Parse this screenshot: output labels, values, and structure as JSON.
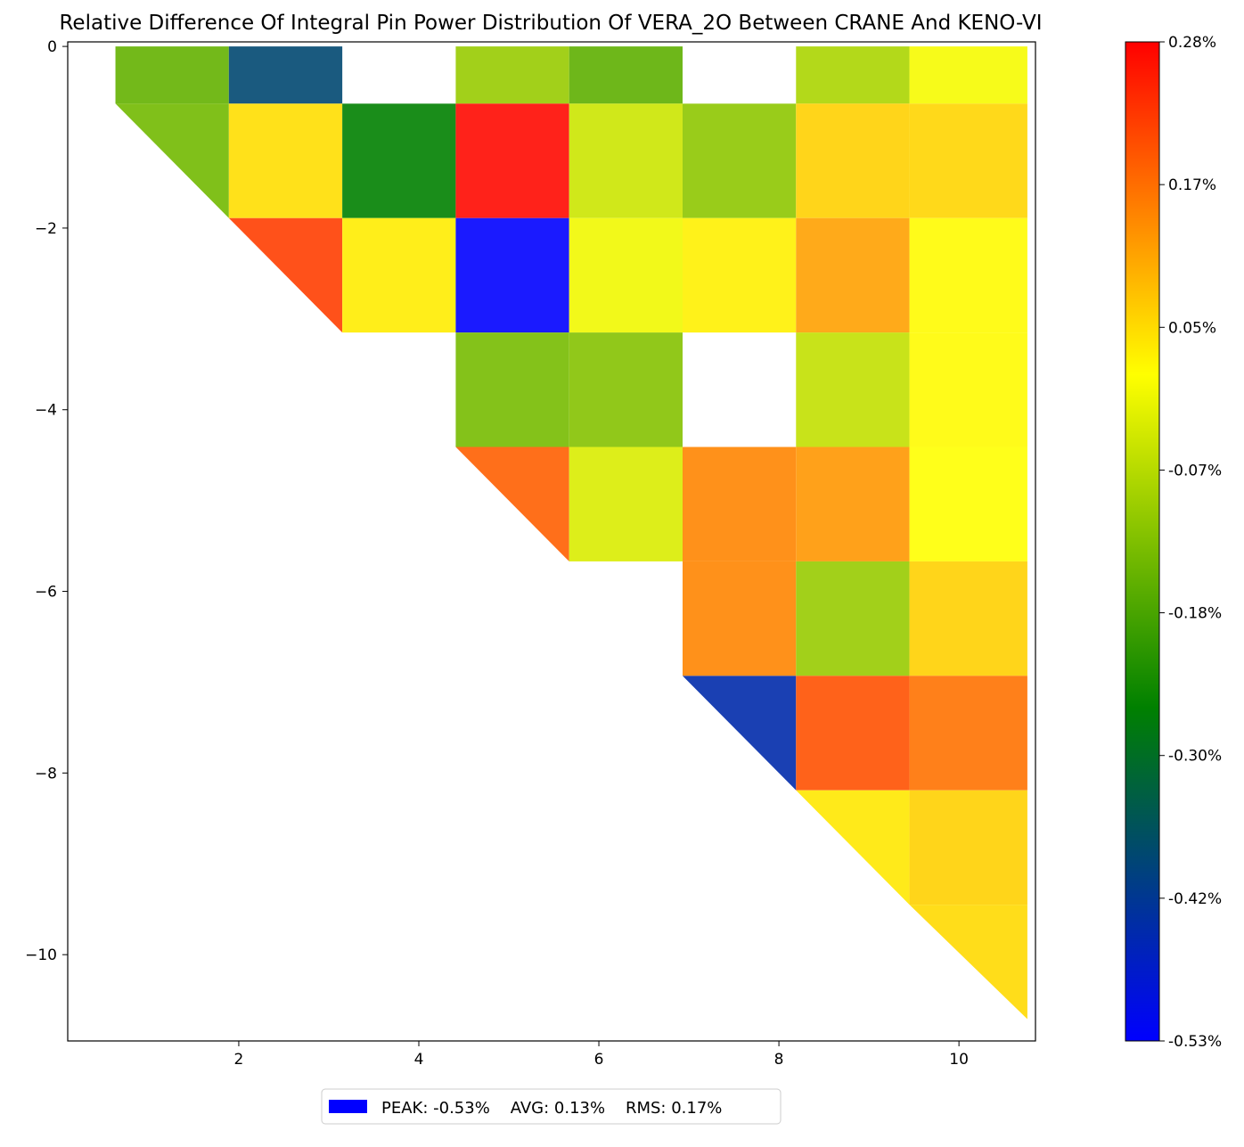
{
  "chart_data": {
    "type": "heatmap",
    "title": "Relative Difference Of Integral Pin Power Distribution Of VERA_2O Between CRANE And KENO-VI",
    "xlabel": "",
    "ylabel": "",
    "xlim": [
      0.1,
      10.85
    ],
    "ylim": [
      -10.95,
      0.05
    ],
    "x_ticks": [
      2,
      4,
      6,
      8,
      10
    ],
    "x_tick_labels": [
      "2",
      "4",
      "6",
      "8",
      "10"
    ],
    "y_ticks": [
      0,
      -2,
      -4,
      -6,
      -8,
      -10
    ],
    "y_tick_labels": [
      "0",
      "−2",
      "−4",
      "−6",
      "−8",
      "−10"
    ],
    "grid": false,
    "colorbar": {
      "min": -0.53,
      "max": 0.28,
      "tick_labels": [
        "0.28%",
        "0.17%",
        "0.05%",
        "-0.07%",
        "-0.18%",
        "-0.30%",
        "-0.42%",
        "-0.53%"
      ],
      "colors": [
        "#0000ff",
        "#008000",
        "#ffff00",
        "#ff0000"
      ]
    },
    "cell_width": 1.26,
    "cell_height": 1.26,
    "row_tops": [
      0.0,
      -0.63,
      -1.89,
      -3.15,
      -4.41,
      -5.67,
      -6.93,
      -8.19,
      -9.45
    ],
    "row_heights": [
      0.63,
      1.26,
      1.26,
      1.26,
      1.26,
      1.26,
      1.26,
      1.26,
      1.26
    ],
    "col_lefts": [
      0.63,
      1.89,
      3.15,
      4.41,
      5.67,
      6.93,
      8.19,
      9.45
    ],
    "col_widths": [
      1.26,
      1.26,
      1.26,
      1.26,
      1.26,
      1.26,
      1.26,
      1.31
    ],
    "cells": [
      {
        "row": 0,
        "col": 0,
        "value": -0.155,
        "shape": "rect"
      },
      {
        "row": 0,
        "col": 1,
        "value": -0.38,
        "shape": "rect"
      },
      {
        "row": 0,
        "col": 3,
        "value": -0.1,
        "shape": "rect"
      },
      {
        "row": 0,
        "col": 4,
        "value": -0.16,
        "shape": "rect"
      },
      {
        "row": 0,
        "col": 6,
        "value": -0.08,
        "shape": "rect"
      },
      {
        "row": 0,
        "col": 7,
        "value": 0.0,
        "shape": "rect"
      },
      {
        "row": 1,
        "col": 0,
        "value": -0.14,
        "shape": "tri"
      },
      {
        "row": 1,
        "col": 1,
        "value": 0.045,
        "shape": "rect"
      },
      {
        "row": 1,
        "col": 2,
        "value": -0.26,
        "shape": "rect"
      },
      {
        "row": 1,
        "col": 3,
        "value": 0.27,
        "shape": "rect"
      },
      {
        "row": 1,
        "col": 4,
        "value": -0.045,
        "shape": "rect"
      },
      {
        "row": 1,
        "col": 5,
        "value": -0.11,
        "shape": "rect"
      },
      {
        "row": 1,
        "col": 6,
        "value": 0.06,
        "shape": "rect"
      },
      {
        "row": 1,
        "col": 7,
        "value": 0.055,
        "shape": "rect"
      },
      {
        "row": 2,
        "col": 1,
        "value": 0.215,
        "shape": "tri"
      },
      {
        "row": 2,
        "col": 2,
        "value": 0.03,
        "shape": "rect"
      },
      {
        "row": 2,
        "col": 3,
        "value": -0.53,
        "shape": "rect"
      },
      {
        "row": 2,
        "col": 4,
        "value": -0.005,
        "shape": "rect"
      },
      {
        "row": 2,
        "col": 5,
        "value": 0.025,
        "shape": "rect"
      },
      {
        "row": 2,
        "col": 6,
        "value": 0.11,
        "shape": "rect"
      },
      {
        "row": 2,
        "col": 7,
        "value": 0.015,
        "shape": "rect"
      },
      {
        "row": 3,
        "col": 3,
        "value": -0.135,
        "shape": "rect"
      },
      {
        "row": 3,
        "col": 4,
        "value": -0.12,
        "shape": "rect"
      },
      {
        "row": 3,
        "col": 6,
        "value": -0.055,
        "shape": "rect"
      },
      {
        "row": 3,
        "col": 7,
        "value": 0.015,
        "shape": "rect"
      },
      {
        "row": 4,
        "col": 3,
        "value": 0.18,
        "shape": "tri"
      },
      {
        "row": 4,
        "col": 4,
        "value": -0.03,
        "shape": "rect"
      },
      {
        "row": 4,
        "col": 5,
        "value": 0.14,
        "shape": "rect"
      },
      {
        "row": 4,
        "col": 6,
        "value": 0.12,
        "shape": "rect"
      },
      {
        "row": 4,
        "col": 7,
        "value": 0.01,
        "shape": "rect"
      },
      {
        "row": 5,
        "col": 5,
        "value": 0.14,
        "shape": "rect"
      },
      {
        "row": 5,
        "col": 6,
        "value": -0.1,
        "shape": "rect"
      },
      {
        "row": 5,
        "col": 7,
        "value": 0.06,
        "shape": "rect"
      },
      {
        "row": 6,
        "col": 5,
        "value": -0.44,
        "shape": "tri"
      },
      {
        "row": 6,
        "col": 6,
        "value": 0.195,
        "shape": "rect"
      },
      {
        "row": 6,
        "col": 7,
        "value": 0.16,
        "shape": "rect"
      },
      {
        "row": 7,
        "col": 6,
        "value": 0.035,
        "shape": "tri"
      },
      {
        "row": 7,
        "col": 7,
        "value": 0.06,
        "shape": "rect"
      },
      {
        "row": 8,
        "col": 7,
        "value": 0.05,
        "shape": "tri"
      }
    ],
    "legend": {
      "placement": "bottom-center",
      "swatch_color": "#0000ff",
      "text": "PEAK: -0.53%    AVG: 0.13%    RMS: 0.17%"
    }
  }
}
